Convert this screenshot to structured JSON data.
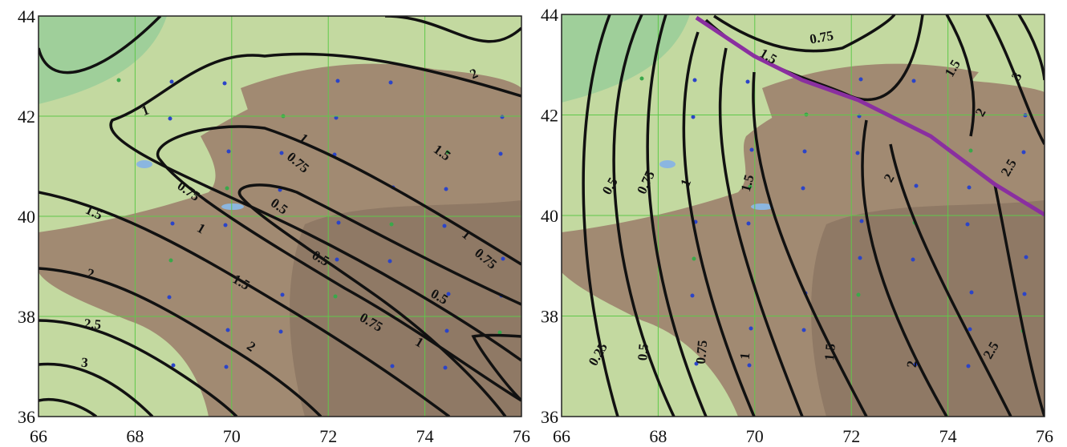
{
  "maps": [
    {
      "xlim": [
        66,
        76
      ],
      "ylim": [
        36,
        44
      ],
      "xticks": [
        66,
        68,
        70,
        72,
        74,
        76
      ],
      "yticks": [
        36,
        38,
        40,
        42,
        44
      ],
      "contour_labels": [
        "2",
        "1.5",
        "1",
        "1",
        "0.75",
        "0.75",
        "0.5",
        "1.5",
        "1",
        "0.5",
        "1",
        "0.75",
        "0.5",
        "2",
        "1.5",
        "0.75",
        "1",
        "2.5",
        "2",
        "3"
      ]
    },
    {
      "xlim": [
        66,
        76
      ],
      "ylim": [
        36,
        44
      ],
      "xticks": [
        66,
        68,
        70,
        72,
        74,
        76
      ],
      "yticks": [
        36,
        38,
        40,
        42,
        44
      ],
      "contour_labels": [
        "0.75",
        "1.5",
        "1.5",
        "3",
        "2",
        "2.5",
        "2",
        "0.5",
        "0.75",
        "1",
        "1.5",
        "0.25",
        "0.5",
        "0.75",
        "1",
        "1.5",
        "2",
        "2.5"
      ]
    }
  ]
}
